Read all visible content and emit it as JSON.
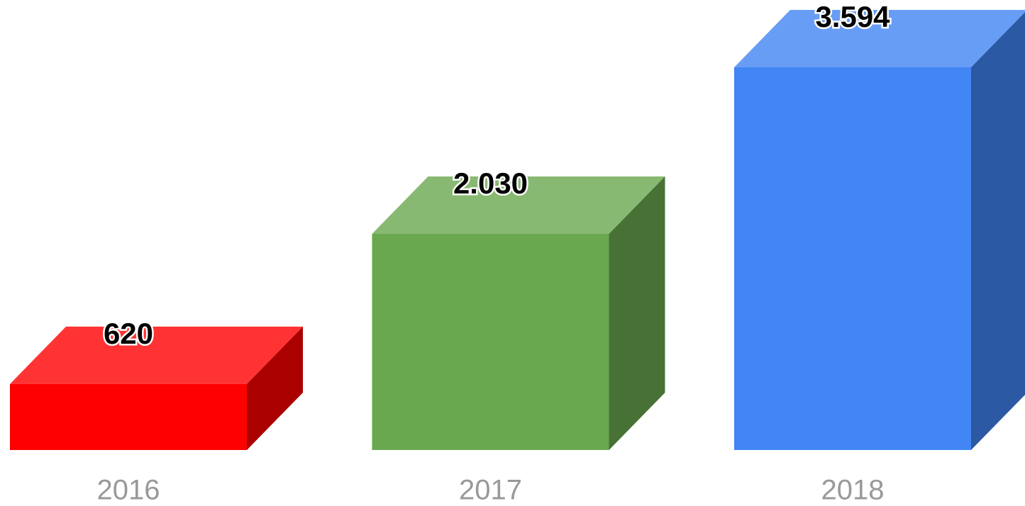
{
  "chart_data": {
    "type": "bar3d",
    "categories": [
      "2016",
      "2017",
      "2018"
    ],
    "values": [
      620,
      2030,
      3594
    ],
    "value_labels": [
      "620",
      "2.030",
      "3.594"
    ],
    "colors": [
      "#ff0000",
      "#6aa84f",
      "#4285f4"
    ]
  }
}
